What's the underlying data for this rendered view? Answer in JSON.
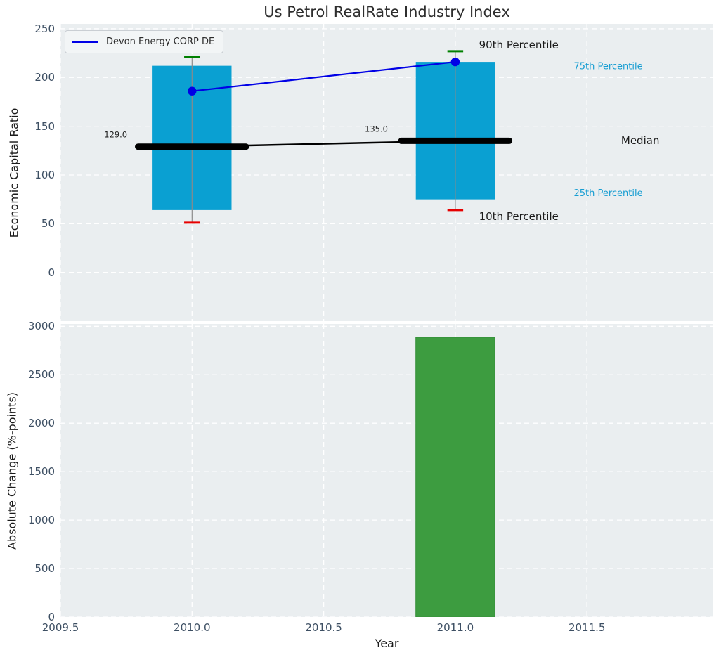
{
  "title": "Us Petrol RealRate Industry Index",
  "legend": {
    "label": "Devon Energy CORP DE"
  },
  "colors": {
    "box": "#0aa0d2",
    "cyan_text": "#169dd2",
    "bar": "#3d9c40",
    "bar_edge": "#368f3a",
    "cap_top": "#008000",
    "cap_bottom": "#e60000",
    "whisker": "#8a8a8a",
    "median": "#000000",
    "series_line": "#0000e6",
    "plot_bg": "#eaeef0",
    "grid": "#ffffff",
    "tick_text": "#3d4f63",
    "dark_text": "#1a1a1a"
  },
  "chart_data": [
    {
      "type": "box",
      "title": "Us Petrol RealRate Industry Index",
      "ylabel": "Economic Capital Ratio",
      "xlabel": "",
      "grid": true,
      "legend_position": "upper left",
      "ylim": [
        -50,
        255
      ],
      "xlim": [
        2009.5,
        2011.98
      ],
      "yticks": [
        0,
        50,
        100,
        150,
        200,
        250
      ],
      "box_width": 0.3,
      "cap_half_width": 0.03,
      "median_half_width": 0.205,
      "boxes": [
        {
          "x": 2010,
          "p10": 51,
          "p25": 64,
          "median": 129,
          "p75": 212,
          "p90": 221,
          "median_label": "129.0"
        },
        {
          "x": 2011,
          "p10": 64,
          "p25": 75,
          "median": 135,
          "p75": 216,
          "p90": 227,
          "median_label": "135.0"
        }
      ],
      "series": [
        {
          "name": "Devon Energy CORP DE",
          "x": [
            2010,
            2011
          ],
          "y": [
            186,
            216
          ]
        }
      ],
      "annotations": [
        {
          "text": "90th Percentile",
          "x": 2011.09,
          "y": 233,
          "color": "#1a1a1a",
          "size": 15,
          "anchor": "start"
        },
        {
          "text": "10th Percentile",
          "x": 2011.09,
          "y": 57,
          "color": "#1a1a1a",
          "size": 15,
          "anchor": "start"
        },
        {
          "text": "75th Percentile",
          "x": 2011.45,
          "y": 211,
          "color": "#169dd2",
          "size": 13,
          "anchor": "start"
        },
        {
          "text": "25th Percentile",
          "x": 2011.45,
          "y": 81,
          "color": "#169dd2",
          "size": 13,
          "anchor": "start"
        },
        {
          "text": "Median",
          "x": 2011.63,
          "y": 135,
          "color": "#1a1a1a",
          "size": 15,
          "anchor": "start"
        },
        {
          "text": "129.0",
          "x": 2009.71,
          "y": 141,
          "color": "#1a1a1a",
          "size": 11.5,
          "anchor": "middle"
        },
        {
          "text": "135.0",
          "x": 2010.7,
          "y": 147,
          "color": "#1a1a1a",
          "size": 11.5,
          "anchor": "middle"
        }
      ]
    },
    {
      "type": "bar",
      "ylabel": "Absolute Change (%-points)",
      "xlabel": "Year",
      "grid": true,
      "ylim": [
        0,
        3024
      ],
      "xlim": [
        2009.5,
        2011.98
      ],
      "yticks": [
        0,
        500,
        1000,
        1500,
        2000,
        2500,
        3000
      ],
      "xticks": [
        "2009.5",
        "2010.0",
        "2010.5",
        "2011.0",
        "2011.5"
      ],
      "xtick_values": [
        2009.5,
        2010.0,
        2010.5,
        2011.0,
        2011.5
      ],
      "bar_width": 0.3,
      "bars": [
        {
          "x": 2011,
          "value": 2885
        }
      ]
    }
  ]
}
